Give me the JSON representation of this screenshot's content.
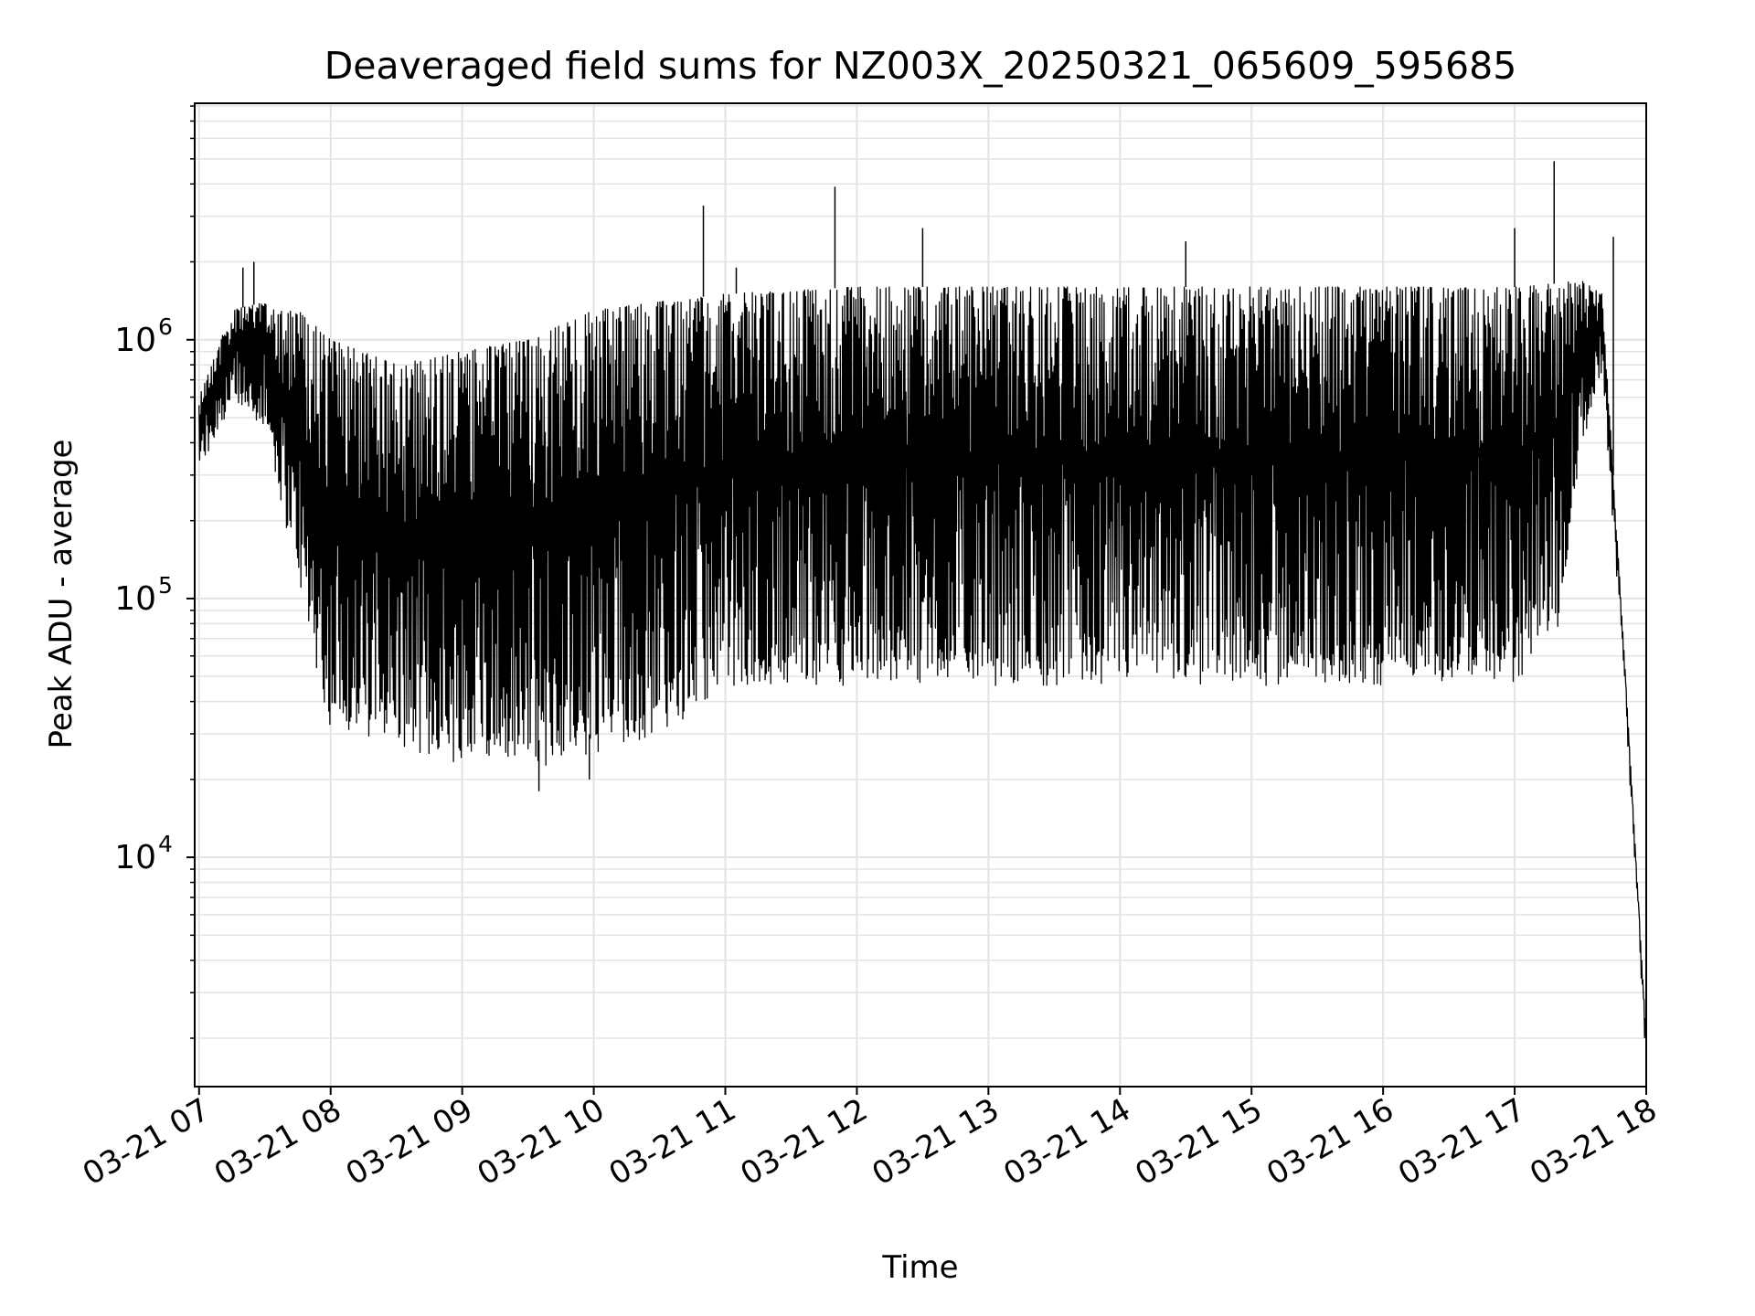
{
  "chart_data": {
    "type": "line",
    "title": "Deaveraged field sums for NZ003X_20250321_065609_595685",
    "xlabel": "Time",
    "ylabel": "Peak ADU - average",
    "yscale": "log",
    "ylim": [
      1300,
      8200000
    ],
    "xlim": [
      "2025-03-21 06:58",
      "2025-03-21 18:00"
    ],
    "grid": true,
    "line_color": "#000000",
    "grid_color": "#e3e3e3",
    "x_ticks": [
      "03-21 07",
      "03-21 08",
      "03-21 09",
      "03-21 10",
      "03-21 11",
      "03-21 12",
      "03-21 13",
      "03-21 14",
      "03-21 15",
      "03-21 16",
      "03-21 17",
      "03-21 18"
    ],
    "y_ticks": [
      {
        "value": 10000,
        "base": "10",
        "exp": "4"
      },
      {
        "value": 100000,
        "base": "10",
        "exp": "5"
      },
      {
        "value": 1000000,
        "base": "10",
        "exp": "6"
      }
    ],
    "series": [
      {
        "envelope_times": [
          "2025-03-21 07:00",
          "2025-03-21 07:15",
          "2025-03-21 07:30",
          "2025-03-21 07:45",
          "2025-03-21 08:00",
          "2025-03-21 08:30",
          "2025-03-21 09:00",
          "2025-03-21 09:30",
          "2025-03-21 10:00",
          "2025-03-21 10:30",
          "2025-03-21 11:00",
          "2025-03-21 11:30",
          "2025-03-21 12:00",
          "2025-03-21 13:00",
          "2025-03-21 14:00",
          "2025-03-21 15:00",
          "2025-03-21 16:00",
          "2025-03-21 16:30",
          "2025-03-21 17:00",
          "2025-03-21 17:20",
          "2025-03-21 17:30",
          "2025-03-21 17:40",
          "2025-03-21 17:50",
          "2025-03-21 18:00"
        ],
        "envelope_low": [
          400000,
          700000,
          600000,
          150000,
          40000,
          35000,
          30000,
          28000,
          30000,
          40000,
          55000,
          60000,
          60000,
          60000,
          60000,
          60000,
          60000,
          60000,
          60000,
          100000,
          500000,
          900000,
          60000,
          2000
        ],
        "envelope_high": [
          600000,
          1300000,
          1400000,
          1300000,
          1000000,
          800000,
          900000,
          1000000,
          1300000,
          1400000,
          1500000,
          1550000,
          1600000,
          1600000,
          1600000,
          1600000,
          1600000,
          1600000,
          1600000,
          1650000,
          1700000,
          1500000,
          60000,
          2000
        ],
        "spikes": [
          {
            "time": "2025-03-21 07:25",
            "value": 2000000
          },
          {
            "time": "2025-03-21 07:20",
            "value": 1900000
          },
          {
            "time": "2025-03-21 10:50",
            "value": 3300000
          },
          {
            "time": "2025-03-21 11:05",
            "value": 1900000
          },
          {
            "time": "2025-03-21 11:50",
            "value": 3900000
          },
          {
            "time": "2025-03-21 12:30",
            "value": 2700000
          },
          {
            "time": "2025-03-21 14:30",
            "value": 2400000
          },
          {
            "time": "2025-03-21 17:00",
            "value": 2700000
          },
          {
            "time": "2025-03-21 17:18",
            "value": 4900000
          },
          {
            "time": "2025-03-21 17:45",
            "value": 2500000
          }
        ],
        "dips": [
          {
            "time": "2025-03-21 09:35",
            "value": 18000
          },
          {
            "time": "2025-03-21 09:58",
            "value": 20000
          }
        ]
      }
    ]
  }
}
